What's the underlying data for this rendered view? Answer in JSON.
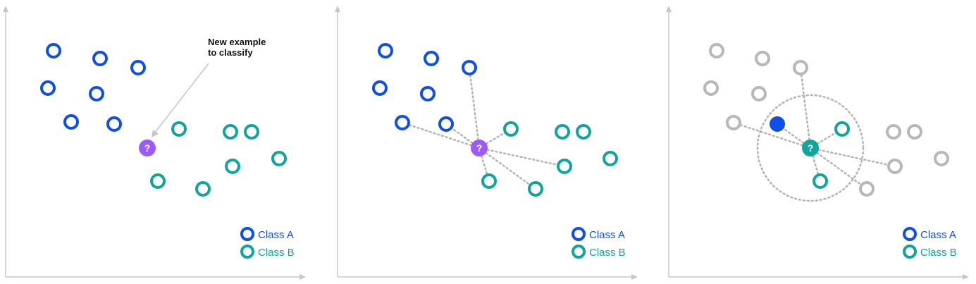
{
  "colors": {
    "class_a": "#0f4fe6",
    "class_b": "#0fa59a",
    "query": "#9b5cf5",
    "query_resolved": "#0fa59a",
    "neutral": "#b7b7b7",
    "axis": "#c6c6c6"
  },
  "annotation": {
    "line1": "New example",
    "line2": "to classify"
  },
  "query_symbol": "?",
  "legend": {
    "class_a": "Class A",
    "class_b": "Class B"
  },
  "panels": [
    {
      "step": "query-shown",
      "query_color": "query"
    },
    {
      "step": "distances-drawn",
      "query_color": "query"
    },
    {
      "step": "nearest-neighbors-selected",
      "query_color": "query_resolved"
    }
  ]
}
